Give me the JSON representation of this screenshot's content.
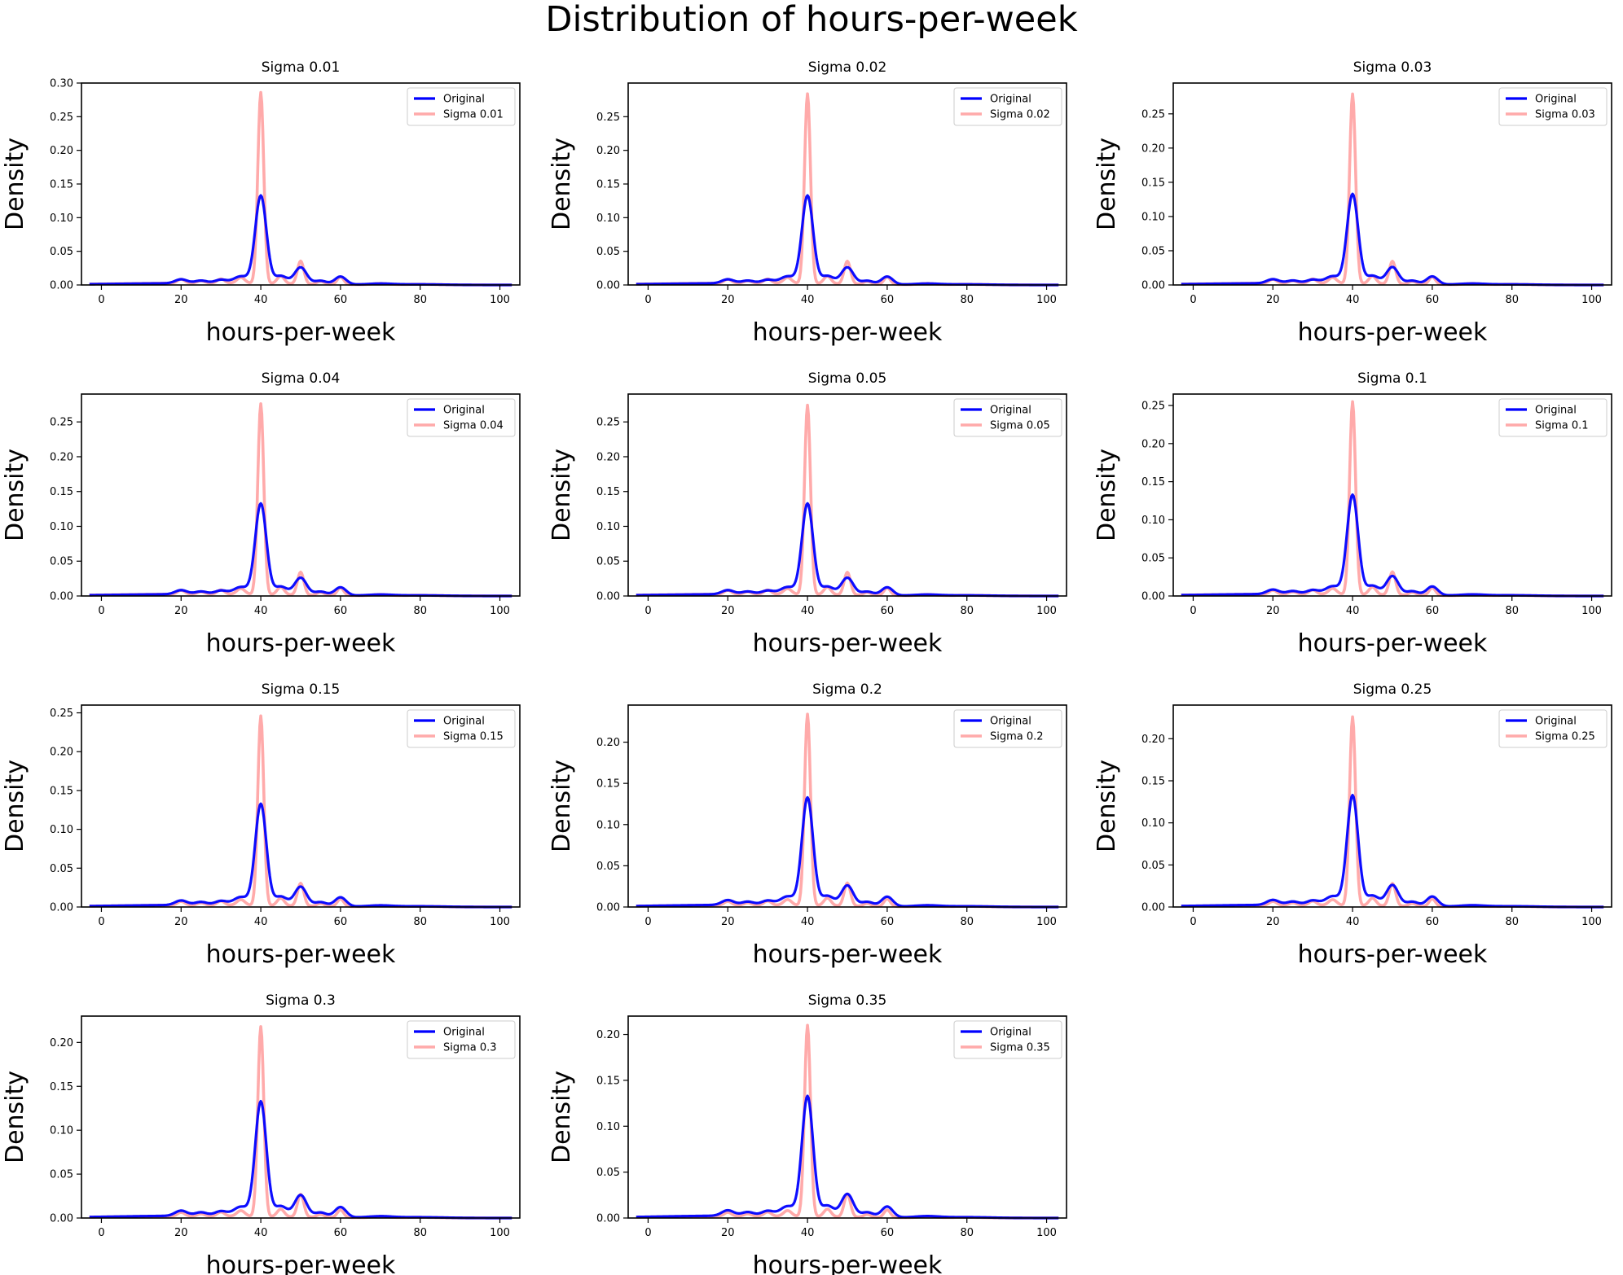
{
  "figure": {
    "title": "Distribution of hours-per-week",
    "legend_location": "upper right",
    "grid": false,
    "colors": {
      "original": "#0000ff",
      "perturbed": "#ffaaaa"
    }
  },
  "chart_data": [
    {
      "type": "line",
      "title": "Sigma 0.01",
      "xlabel": "hours-per-week",
      "ylabel": "Density",
      "xlim": [
        -5,
        105
      ],
      "ylim": [
        0,
        0.3
      ],
      "xticks": [
        0,
        20,
        40,
        60,
        80,
        100
      ],
      "yticks": [
        0.0,
        0.05,
        0.1,
        0.15,
        0.2,
        0.25,
        0.3
      ],
      "xtick_labels": [
        "0",
        "20",
        "40",
        "60",
        "80",
        "100"
      ],
      "ytick_labels": [
        "0.00",
        "0.05",
        "0.10",
        "0.15",
        "0.20",
        "0.25",
        "0.30"
      ],
      "series": [
        {
          "name": "Original",
          "color": "#0000ff",
          "peak_density": 0.133
        },
        {
          "name": "Sigma 0.01",
          "color": "#ffaaaa",
          "peak_density": 0.286
        }
      ]
    },
    {
      "type": "line",
      "title": "Sigma 0.02",
      "xlabel": "hours-per-week",
      "ylabel": "Density",
      "xlim": [
        -5,
        105
      ],
      "ylim": [
        0,
        0.3
      ],
      "xticks": [
        0,
        20,
        40,
        60,
        80,
        100
      ],
      "yticks": [
        0.0,
        0.05,
        0.1,
        0.15,
        0.2,
        0.25
      ],
      "xtick_labels": [
        "0",
        "20",
        "40",
        "60",
        "80",
        "100"
      ],
      "ytick_labels": [
        "0.00",
        "0.05",
        "0.10",
        "0.15",
        "0.20",
        "0.25"
      ],
      "series": [
        {
          "name": "Original",
          "color": "#0000ff",
          "peak_density": 0.133
        },
        {
          "name": "Sigma 0.02",
          "color": "#ffaaaa",
          "peak_density": 0.284
        }
      ]
    },
    {
      "type": "line",
      "title": "Sigma 0.03",
      "xlabel": "hours-per-week",
      "ylabel": "Density",
      "xlim": [
        -5,
        105
      ],
      "ylim": [
        0,
        0.295
      ],
      "xticks": [
        0,
        20,
        40,
        60,
        80,
        100
      ],
      "yticks": [
        0.0,
        0.05,
        0.1,
        0.15,
        0.2,
        0.25
      ],
      "xtick_labels": [
        "0",
        "20",
        "40",
        "60",
        "80",
        "100"
      ],
      "ytick_labels": [
        "0.00",
        "0.05",
        "0.10",
        "0.15",
        "0.20",
        "0.25"
      ],
      "series": [
        {
          "name": "Original",
          "color": "#0000ff",
          "peak_density": 0.133
        },
        {
          "name": "Sigma 0.03",
          "color": "#ffaaaa",
          "peak_density": 0.279
        }
      ]
    },
    {
      "type": "line",
      "title": "Sigma 0.04",
      "xlabel": "hours-per-week",
      "ylabel": "Density",
      "xlim": [
        -5,
        105
      ],
      "ylim": [
        0,
        0.29
      ],
      "xticks": [
        0,
        20,
        40,
        60,
        80,
        100
      ],
      "yticks": [
        0.0,
        0.05,
        0.1,
        0.15,
        0.2,
        0.25
      ],
      "xtick_labels": [
        "0",
        "20",
        "40",
        "60",
        "80",
        "100"
      ],
      "ytick_labels": [
        "0.00",
        "0.05",
        "0.10",
        "0.15",
        "0.20",
        "0.25"
      ],
      "series": [
        {
          "name": "Original",
          "color": "#0000ff",
          "peak_density": 0.133
        },
        {
          "name": "Sigma 0.04",
          "color": "#ffaaaa",
          "peak_density": 0.276
        }
      ]
    },
    {
      "type": "line",
      "title": "Sigma 0.05",
      "xlabel": "hours-per-week",
      "ylabel": "Density",
      "xlim": [
        -5,
        105
      ],
      "ylim": [
        0,
        0.29
      ],
      "xticks": [
        0,
        20,
        40,
        60,
        80,
        100
      ],
      "yticks": [
        0.0,
        0.05,
        0.1,
        0.15,
        0.2,
        0.25
      ],
      "xtick_labels": [
        "0",
        "20",
        "40",
        "60",
        "80",
        "100"
      ],
      "ytick_labels": [
        "0.00",
        "0.05",
        "0.10",
        "0.15",
        "0.20",
        "0.25"
      ],
      "series": [
        {
          "name": "Original",
          "color": "#0000ff",
          "peak_density": 0.133
        },
        {
          "name": "Sigma 0.05",
          "color": "#ffaaaa",
          "peak_density": 0.274
        }
      ]
    },
    {
      "type": "line",
      "title": "Sigma 0.1",
      "xlabel": "hours-per-week",
      "ylabel": "Density",
      "xlim": [
        -5,
        105
      ],
      "ylim": [
        0,
        0.265
      ],
      "xticks": [
        0,
        20,
        40,
        60,
        80,
        100
      ],
      "yticks": [
        0.0,
        0.05,
        0.1,
        0.15,
        0.2,
        0.25
      ],
      "xtick_labels": [
        "0",
        "20",
        "40",
        "60",
        "80",
        "100"
      ],
      "ytick_labels": [
        "0.00",
        "0.05",
        "0.10",
        "0.15",
        "0.20",
        "0.25"
      ],
      "series": [
        {
          "name": "Original",
          "color": "#0000ff",
          "peak_density": 0.133
        },
        {
          "name": "Sigma 0.1",
          "color": "#ffaaaa",
          "peak_density": 0.255
        }
      ]
    },
    {
      "type": "line",
      "title": "Sigma 0.15",
      "xlabel": "hours-per-week",
      "ylabel": "Density",
      "xlim": [
        -5,
        105
      ],
      "ylim": [
        0,
        0.26
      ],
      "xticks": [
        0,
        20,
        40,
        60,
        80,
        100
      ],
      "yticks": [
        0.0,
        0.05,
        0.1,
        0.15,
        0.2,
        0.25
      ],
      "xtick_labels": [
        "0",
        "20",
        "40",
        "60",
        "80",
        "100"
      ],
      "ytick_labels": [
        "0.00",
        "0.05",
        "0.10",
        "0.15",
        "0.20",
        "0.25"
      ],
      "series": [
        {
          "name": "Original",
          "color": "#0000ff",
          "peak_density": 0.133
        },
        {
          "name": "Sigma 0.15",
          "color": "#ffaaaa",
          "peak_density": 0.246
        }
      ]
    },
    {
      "type": "line",
      "title": "Sigma 0.2",
      "xlabel": "hours-per-week",
      "ylabel": "Density",
      "xlim": [
        -5,
        105
      ],
      "ylim": [
        0,
        0.245
      ],
      "xticks": [
        0,
        20,
        40,
        60,
        80,
        100
      ],
      "yticks": [
        0.0,
        0.05,
        0.1,
        0.15,
        0.2
      ],
      "xtick_labels": [
        "0",
        "20",
        "40",
        "60",
        "80",
        "100"
      ],
      "ytick_labels": [
        "0.00",
        "0.05",
        "0.10",
        "0.15",
        "0.20"
      ],
      "series": [
        {
          "name": "Original",
          "color": "#0000ff",
          "peak_density": 0.133
        },
        {
          "name": "Sigma 0.2",
          "color": "#ffaaaa",
          "peak_density": 0.234
        }
      ]
    },
    {
      "type": "line",
      "title": "Sigma 0.25",
      "xlabel": "hours-per-week",
      "ylabel": "Density",
      "xlim": [
        -5,
        105
      ],
      "ylim": [
        0,
        0.24
      ],
      "xticks": [
        0,
        20,
        40,
        60,
        80,
        100
      ],
      "yticks": [
        0.0,
        0.05,
        0.1,
        0.15,
        0.2
      ],
      "xtick_labels": [
        "0",
        "20",
        "40",
        "60",
        "80",
        "100"
      ],
      "ytick_labels": [
        "0.00",
        "0.05",
        "0.10",
        "0.15",
        "0.20"
      ],
      "series": [
        {
          "name": "Original",
          "color": "#0000ff",
          "peak_density": 0.133
        },
        {
          "name": "Sigma 0.25",
          "color": "#ffaaaa",
          "peak_density": 0.226
        }
      ]
    },
    {
      "type": "line",
      "title": "Sigma 0.3",
      "xlabel": "hours-per-week",
      "ylabel": "Density",
      "xlim": [
        -5,
        105
      ],
      "ylim": [
        0,
        0.23
      ],
      "xticks": [
        0,
        20,
        40,
        60,
        80,
        100
      ],
      "yticks": [
        0.0,
        0.05,
        0.1,
        0.15,
        0.2
      ],
      "xtick_labels": [
        "0",
        "20",
        "40",
        "60",
        "80",
        "100"
      ],
      "ytick_labels": [
        "0.00",
        "0.05",
        "0.10",
        "0.15",
        "0.20"
      ],
      "series": [
        {
          "name": "Original",
          "color": "#0000ff",
          "peak_density": 0.133
        },
        {
          "name": "Sigma 0.3",
          "color": "#ffaaaa",
          "peak_density": 0.218
        }
      ]
    },
    {
      "type": "line",
      "title": "Sigma 0.35",
      "xlabel": "hours-per-week",
      "ylabel": "Density",
      "xlim": [
        -5,
        105
      ],
      "ylim": [
        0,
        0.22
      ],
      "xticks": [
        0,
        20,
        40,
        60,
        80,
        100
      ],
      "yticks": [
        0.0,
        0.05,
        0.1,
        0.15,
        0.2
      ],
      "xtick_labels": [
        "0",
        "20",
        "40",
        "60",
        "80",
        "100"
      ],
      "ytick_labels": [
        "0.00",
        "0.05",
        "0.10",
        "0.15",
        "0.20"
      ],
      "series": [
        {
          "name": "Original",
          "color": "#0000ff",
          "peak_density": 0.133
        },
        {
          "name": "Sigma 0.35",
          "color": "#ffaaaa",
          "peak_density": 0.21
        }
      ]
    }
  ]
}
